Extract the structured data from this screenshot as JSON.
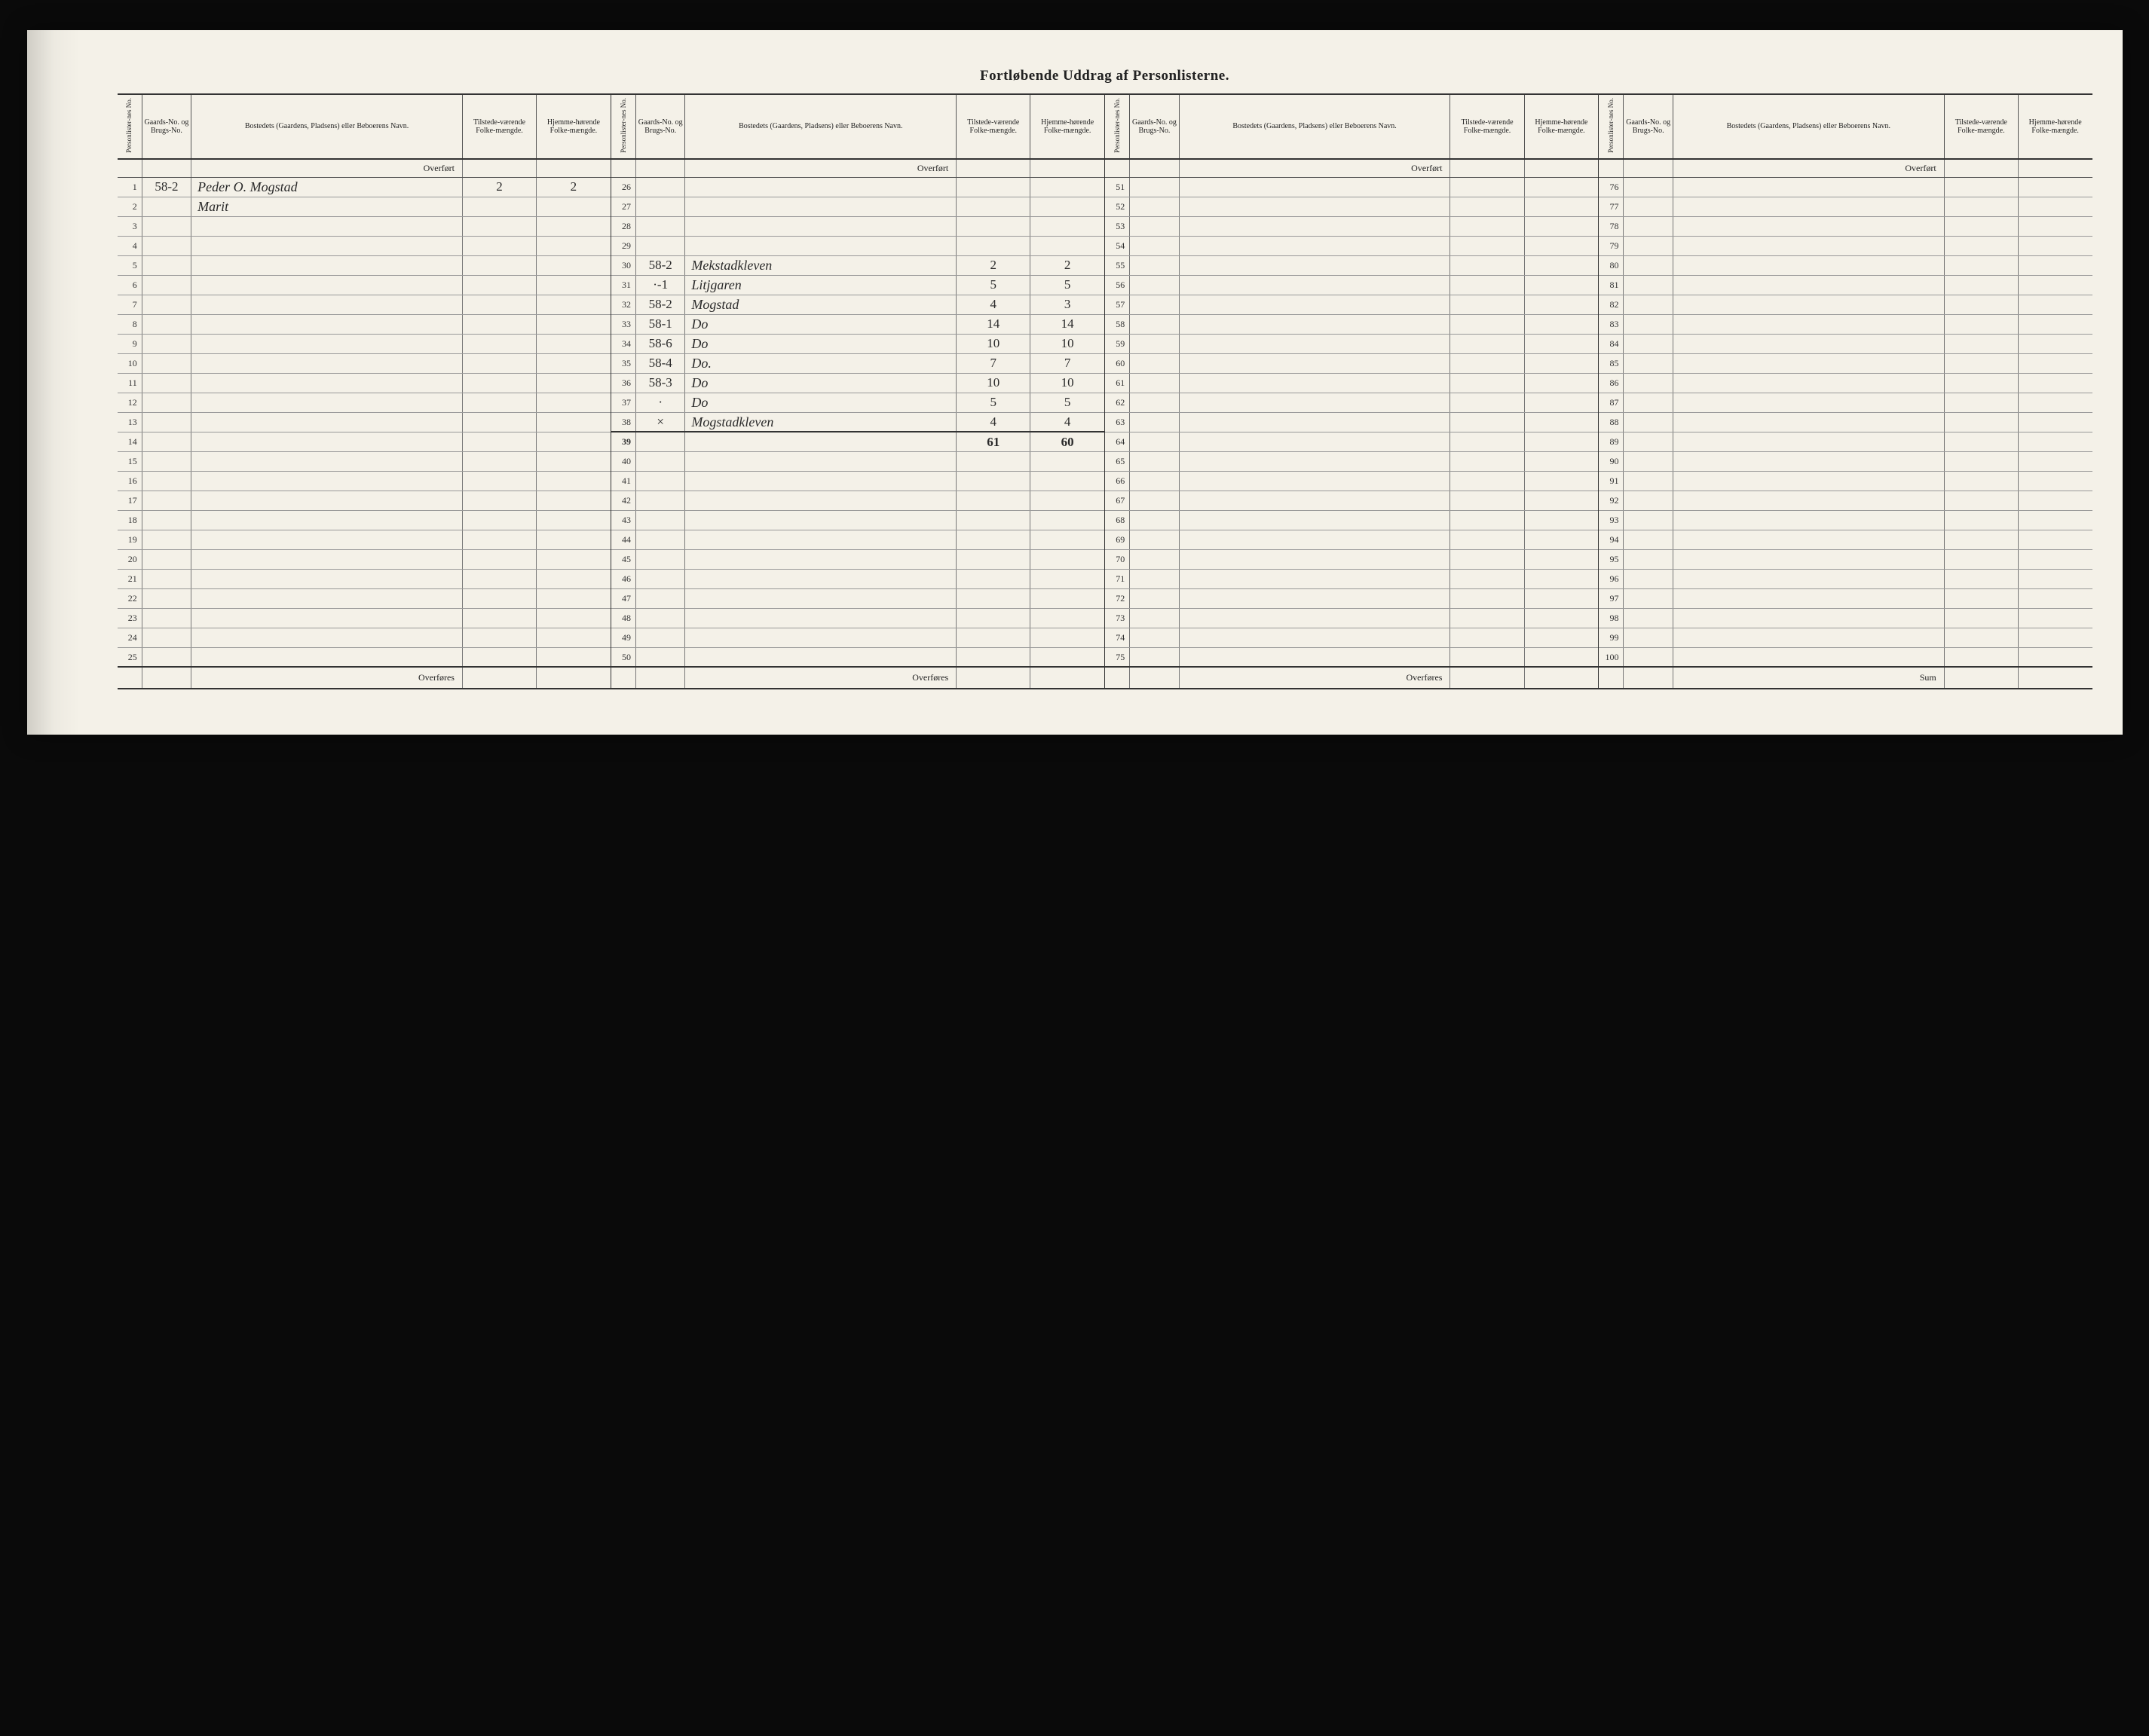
{
  "title": "Fortløbende Uddrag af Personlisterne.",
  "headers": {
    "person_no": "Personlister-nes No.",
    "gaards_no": "Gaards-No. og Brugs-No.",
    "bosted": "Bostedets (Gaardens, Pladsens) eller Beboerens Navn.",
    "tilstede": "Tilstede-værende Folke-mængde.",
    "hjemme": "Hjemme-hørende Folke-mængde."
  },
  "labels": {
    "overfort": "Overført",
    "overfores": "Overføres",
    "sum": "Sum"
  },
  "col1": {
    "start": 1,
    "end": 25,
    "rows": {
      "1": {
        "gaard": "58-2",
        "name": "Peder O. Mogstad",
        "t": "2",
        "h": "2"
      },
      "2": {
        "name": "Marit"
      }
    }
  },
  "col2": {
    "start": 26,
    "end": 50,
    "rows": {
      "30": {
        "gaard": "58-2",
        "name": "Mekstadkleven",
        "t": "2",
        "h": "2"
      },
      "31": {
        "gaard": "·-1",
        "name": "Litjgaren",
        "t": "5",
        "h": "5"
      },
      "32": {
        "gaard": "58-2",
        "name": "Mogstad",
        "t": "4",
        "h": "3"
      },
      "33": {
        "gaard": "58-1",
        "name": "Do",
        "t": "14",
        "h": "14"
      },
      "34": {
        "gaard": "58-6",
        "name": "Do",
        "t": "10",
        "h": "10"
      },
      "35": {
        "gaard": "58-4",
        "name": "Do.",
        "t": "7",
        "h": "7"
      },
      "36": {
        "gaard": "58-3",
        "name": "Do",
        "t": "10",
        "h": "10"
      },
      "37": {
        "gaard": "·",
        "name": "Do",
        "t": "5",
        "h": "5"
      },
      "38": {
        "gaard": "×",
        "name": "Mogstadkleven",
        "t": "4",
        "h": "4"
      }
    },
    "subtotal": {
      "t": "61",
      "h": "60"
    }
  },
  "col3": {
    "start": 51,
    "end": 75,
    "rows": {}
  },
  "col4": {
    "start": 76,
    "end": 100,
    "rows": {}
  },
  "style": {
    "paper_bg": "#f4f1e8",
    "ink": "#2a2a2a",
    "rule": "#333333",
    "light_rule": "#999999"
  }
}
